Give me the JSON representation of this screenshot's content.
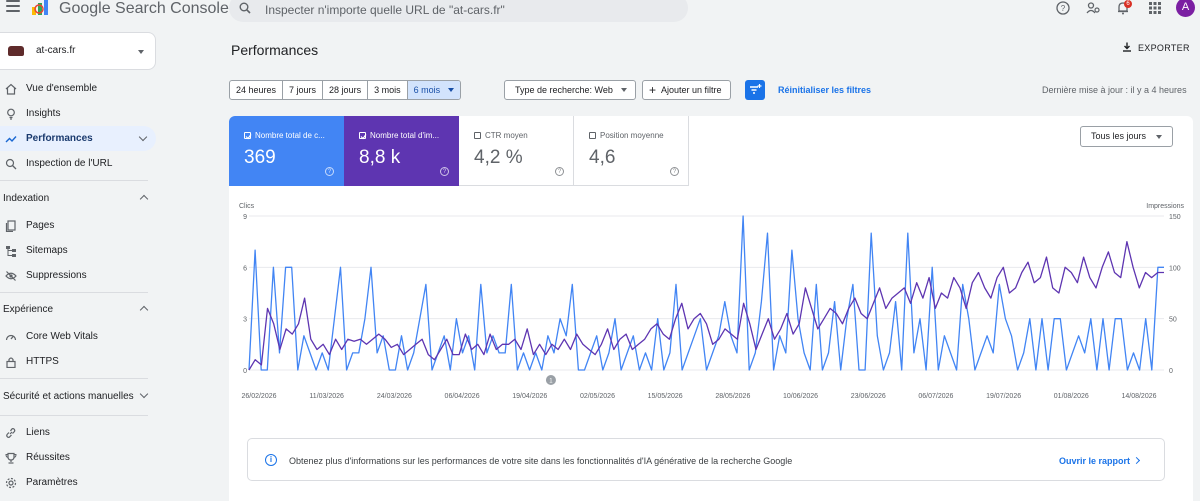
{
  "header": {
    "app_title": "Google Search Console",
    "search_placeholder": "Inspecter n'importe quelle URL de \"at-cars.fr\"",
    "notification_count": "6",
    "avatar_letter": "A"
  },
  "property": {
    "name": "at-cars.fr"
  },
  "sidebar": {
    "top_items": [
      {
        "label": "Vue d'ensemble",
        "icon": "home-icon"
      },
      {
        "label": "Insights",
        "icon": "lightbulb-icon"
      },
      {
        "label": "Performances",
        "icon": "trending-up-icon",
        "active": true
      },
      {
        "label": "Inspection de l'URL",
        "icon": "search-icon"
      }
    ],
    "sections": [
      {
        "title": "Indexation",
        "expanded": true,
        "items": [
          {
            "label": "Pages",
            "icon": "pages-icon"
          },
          {
            "label": "Sitemaps",
            "icon": "sitemap-icon"
          },
          {
            "label": "Suppressions",
            "icon": "eye-off-icon"
          }
        ]
      },
      {
        "title": "Expérience",
        "expanded": true,
        "items": [
          {
            "label": "Core Web Vitals",
            "icon": "gauge-icon"
          },
          {
            "label": "HTTPS",
            "icon": "lock-icon"
          }
        ]
      },
      {
        "title": "Sécurité et actions manuelles",
        "expanded": false,
        "items": []
      }
    ],
    "bottom_items": [
      {
        "label": "Liens",
        "icon": "link-icon"
      },
      {
        "label": "Réussites",
        "icon": "trophy-icon"
      },
      {
        "label": "Paramètres",
        "icon": "settings-icon"
      }
    ]
  },
  "main": {
    "title": "Performances",
    "export_label": "EXPORTER",
    "date_ranges": [
      "24 heures",
      "7 jours",
      "28 jours",
      "3 mois",
      "6 mois"
    ],
    "selected_range": "6 mois",
    "search_type": "Type de recherche: Web",
    "add_filter": "Ajouter un filtre",
    "reset_filters": "Réinitialiser les filtres",
    "last_update": "Dernière mise à jour : il y a 4 heures"
  },
  "metrics": [
    {
      "label": "Nombre total de c...",
      "value": "369",
      "checked": true
    },
    {
      "label": "Nombre total d'im...",
      "value": "8,8 k",
      "checked": true
    },
    {
      "label": "CTR moyen",
      "value": "4,2 %",
      "checked": false
    },
    {
      "label": "Position moyenne",
      "value": "4,6",
      "checked": false
    }
  ],
  "day_filter": "Tous les jours",
  "banner": {
    "text": "Obtenez plus d'informations sur les performances de votre site dans les fonctionnalités d'IA générative de la recherche Google",
    "link": "Ouvrir le rapport"
  },
  "chart_data": {
    "type": "line",
    "ylabel_left": "Clics",
    "ylabel_right": "Impressions",
    "y_left_ticks": [
      "9",
      "6",
      "3",
      "0"
    ],
    "y_right_ticks": [
      "150",
      "100",
      "50",
      "0"
    ],
    "ylim_left": [
      0,
      9
    ],
    "ylim_right": [
      0,
      150
    ],
    "x_labels": [
      "26/02/2026",
      "11/03/2026",
      "24/03/2026",
      "06/04/2026",
      "19/04/2026",
      "02/05/2026",
      "15/05/2026",
      "28/05/2026",
      "10/06/2026",
      "23/06/2026",
      "06/07/2026",
      "19/07/2026",
      "01/08/2026",
      "14/08/2026"
    ],
    "annotation": "1",
    "colors": {
      "clicks": "#4285f4",
      "impressions": "#5e35b1"
    },
    "series": [
      {
        "name": "Clics",
        "axis": "left",
        "values": [
          0,
          7,
          0,
          0,
          6,
          1,
          6,
          6,
          0,
          2,
          1,
          0,
          1,
          0,
          3,
          6,
          0,
          1,
          1,
          3,
          6,
          1,
          2,
          0,
          0,
          2,
          0,
          1,
          3,
          5,
          0,
          1,
          2,
          0,
          3,
          1,
          2,
          0,
          5,
          1,
          2,
          1,
          1,
          5,
          0,
          1,
          0,
          1,
          0,
          2,
          1,
          3,
          2,
          5,
          0,
          0,
          1,
          2,
          0,
          1,
          3,
          0,
          1,
          2,
          0,
          1,
          0,
          3,
          0,
          1,
          5,
          0,
          1,
          2,
          3,
          0,
          1,
          2,
          4,
          2,
          1,
          9,
          0,
          1,
          4,
          8,
          0,
          2,
          1,
          7,
          3,
          1,
          0,
          5,
          0,
          1,
          4,
          0,
          3,
          5,
          0,
          0,
          8,
          2,
          0,
          1,
          4,
          0,
          8,
          1,
          3,
          0,
          6,
          0,
          2,
          1,
          0,
          5,
          3,
          0,
          1,
          2,
          1,
          5,
          3,
          2,
          0,
          1,
          3,
          0,
          3,
          0,
          3,
          3,
          0,
          1,
          2,
          1,
          3,
          0,
          3,
          0,
          3,
          3,
          0,
          1,
          0,
          3,
          0,
          6,
          6
        ]
      },
      {
        "name": "Impressions",
        "axis": "right",
        "values": [
          0,
          10,
          5,
          60,
          45,
          20,
          40,
          35,
          45,
          70,
          30,
          20,
          25,
          15,
          30,
          20,
          30,
          28,
          30,
          25,
          30,
          35,
          30,
          22,
          25,
          15,
          20,
          25,
          30,
          15,
          10,
          20,
          30,
          15,
          15,
          35,
          20,
          25,
          15,
          35,
          20,
          25,
          25,
          30,
          20,
          40,
          15,
          25,
          15,
          25,
          20,
          30,
          20,
          35,
          25,
          20,
          15,
          25,
          40,
          20,
          30,
          35,
          20,
          25,
          30,
          40,
          45,
          35,
          30,
          50,
          65,
          40,
          50,
          55,
          45,
          25,
          30,
          40,
          35,
          30,
          65,
          45,
          20,
          35,
          50,
          30,
          40,
          55,
          35,
          45,
          80,
          60,
          40,
          50,
          60,
          55,
          45,
          60,
          70,
          55,
          50,
          65,
          80,
          60,
          70,
          75,
          80,
          65,
          85,
          70,
          90,
          60,
          75,
          70,
          90,
          80,
          60,
          85,
          95,
          80,
          70,
          90,
          100,
          75,
          80,
          95,
          105,
          85,
          90,
          110,
          80,
          75,
          100,
          95,
          85,
          110,
          90,
          80,
          100,
          115,
          95,
          90,
          125,
          100,
          80,
          95,
          90,
          95,
          95
        ]
      }
    ]
  }
}
